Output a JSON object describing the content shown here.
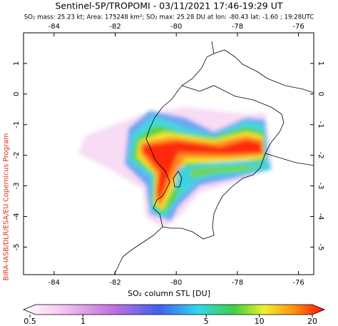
{
  "header": {
    "title": "Sentinel-5P/TROPOMI - 03/11/2021 17:46-19:29 UT",
    "subtitle": "SO₂ mass: 25.23 kt; Area: 175248 km²; SO₂ max: 25.28 DU at lon: -80.43 lat: -1.60 ; 19:28UTC"
  },
  "credit": "BIRA-IASB/DLR/ESA/EU Copernicus Program",
  "map": {
    "xlim": [
      -85,
      -75.5
    ],
    "ylim": [
      -5.9,
      2
    ],
    "xticks": [
      -84,
      -82,
      -80,
      -78,
      -76
    ],
    "yticks": [
      1,
      0,
      -1,
      -2,
      -3,
      -4,
      -5
    ]
  },
  "colorbar": {
    "label": "SO₂ column STL [DU]",
    "lim": [
      0.5,
      20
    ],
    "ticks": [
      0.5,
      1,
      5,
      10,
      20
    ],
    "log": true
  }
}
